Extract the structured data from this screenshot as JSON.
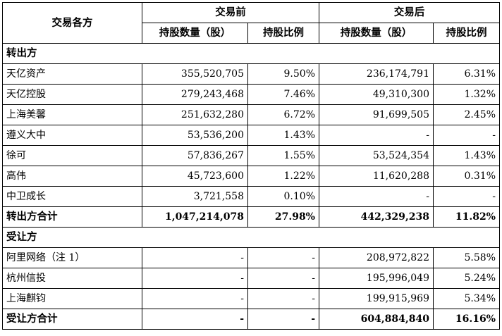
{
  "header": {
    "party": "交易各方",
    "before": "交易前",
    "after": "交易后",
    "shares": "持股数量（股）",
    "ratio": "持股比例"
  },
  "sections": [
    {
      "title": "转出方",
      "rows": [
        {
          "name": "天亿资产",
          "before_shares": "355,520,705",
          "before_ratio": "9.50%",
          "after_shares": "236,174,791",
          "after_ratio": "6.31%"
        },
        {
          "name": "天亿控股",
          "before_shares": "279,243,468",
          "before_ratio": "7.46%",
          "after_shares": "49,310,300",
          "after_ratio": "1.32%"
        },
        {
          "name": "上海美馨",
          "before_shares": "251,632,280",
          "before_ratio": "6.72%",
          "after_shares": "91,699,505",
          "after_ratio": "2.45%"
        },
        {
          "name": "遵义大中",
          "before_shares": "53,536,200",
          "before_ratio": "1.43%",
          "after_shares": "-",
          "after_ratio": "-"
        },
        {
          "name": "徐可",
          "before_shares": "57,836,267",
          "before_ratio": "1.55%",
          "after_shares": "53,524,354",
          "after_ratio": "1.43%"
        },
        {
          "name": "高伟",
          "before_shares": "45,723,600",
          "before_ratio": "1.22%",
          "after_shares": "11,620,288",
          "after_ratio": "0.31%"
        },
        {
          "name": "中卫成长",
          "before_shares": "3,721,558",
          "before_ratio": "0.10%",
          "after_shares": "-",
          "after_ratio": "-"
        }
      ],
      "total": {
        "name": "转出方合计",
        "before_shares": "1,047,214,078",
        "before_ratio": "27.98%",
        "after_shares": "442,329,238",
        "after_ratio": "11.82%"
      }
    },
    {
      "title": "受让方",
      "rows": [
        {
          "name": "阿里网络（注 1）",
          "before_shares": "-",
          "before_ratio": "-",
          "after_shares": "208,972,822",
          "after_ratio": "5.58%"
        },
        {
          "name": "杭州信投",
          "before_shares": "-",
          "before_ratio": "-",
          "after_shares": "195,996,049",
          "after_ratio": "5.24%"
        },
        {
          "name": "上海麒钧",
          "before_shares": "-",
          "before_ratio": "-",
          "after_shares": "199,915,969",
          "after_ratio": "5.34%"
        }
      ],
      "total": {
        "name": "受让方合计",
        "before_shares": "-",
        "before_ratio": "-",
        "after_shares": "604,884,840",
        "after_ratio": "16.16%"
      }
    }
  ]
}
